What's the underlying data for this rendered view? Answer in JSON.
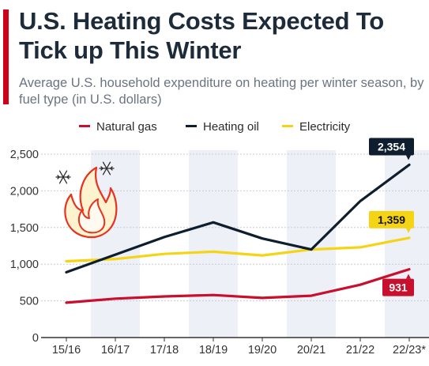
{
  "header": {
    "title": "U.S. Heating Costs Expected To Tick up This Winter",
    "subtitle": "Average U.S. household expenditure on heating per winter season, by fuel type (in U.S. dollars)"
  },
  "colors": {
    "accent": "#d0021b",
    "natural_gas": "#c8102e",
    "heating_oil": "#0f1e2e",
    "electricity": "#f5d415",
    "band": "#eef0f8"
  },
  "icons": [
    "snowflake-icon",
    "snowflake-icon",
    "flame-icon"
  ],
  "chart_data": {
    "type": "line",
    "categories": [
      "15/16",
      "16/17",
      "17/18",
      "18/19",
      "19/20",
      "20/21",
      "21/22",
      "22/23*"
    ],
    "series": [
      {
        "name": "Natural gas",
        "values": [
          475,
          530,
          560,
          580,
          540,
          570,
          720,
          931
        ]
      },
      {
        "name": "Heating oil",
        "values": [
          890,
          1130,
          1370,
          1570,
          1350,
          1200,
          1860,
          2354
        ]
      },
      {
        "name": "Electricity",
        "values": [
          1040,
          1070,
          1140,
          1170,
          1120,
          1200,
          1230,
          1359
        ]
      }
    ],
    "yticks": [
      "0",
      "500",
      "1,000",
      "1,500",
      "2,000",
      "2,500"
    ],
    "ylim": [
      0,
      2500
    ],
    "data_labels": {
      "Natural gas": "931",
      "Heating oil": "2,354",
      "Electricity": "1,359"
    },
    "grid": true,
    "legend": "top"
  }
}
